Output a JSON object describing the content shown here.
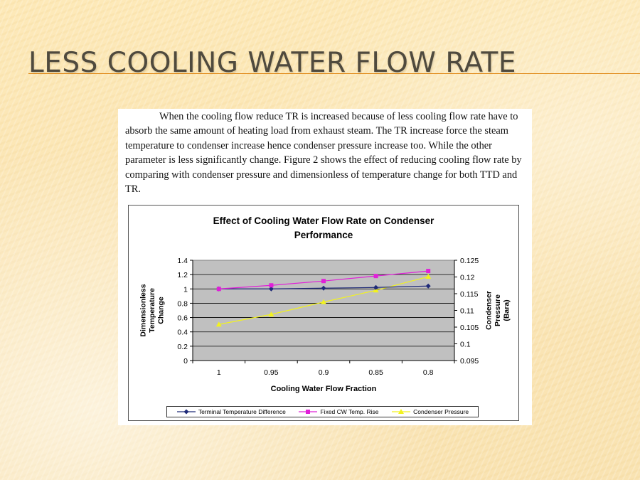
{
  "slide": {
    "title": "LESS COOLING WATER FLOW RATE",
    "accent_color": "#e08a1a"
  },
  "figure": {
    "paragraph": "When the cooling flow reduce TR is increased because of less cooling flow rate have to absorb the same amount of heating load from exhaust steam. The TR increase force the steam temperature to condenser increase hence condenser pressure increase too. While the other parameter is less significantly change. Figure 2 shows the effect of reducing cooling flow rate by comparing with condenser pressure and dimensionless of temperature change for both TTD and TR."
  },
  "chart_data": {
    "type": "line",
    "title": "Effect of Cooling Water Flow Rate on Condenser Performance",
    "xlabel": "Cooling Water Flow Fraction",
    "ylabel_left": "Dimensionless Temperature Change",
    "ylabel_right": "Condenser Pressure (Bara)",
    "categories": [
      "1",
      "0.95",
      "0.9",
      "0.85",
      "0.8"
    ],
    "y_left": {
      "min": 0,
      "max": 1.4,
      "ticks": [
        "0",
        "0.2",
        "0.4",
        "0.6",
        "0.8",
        "1",
        "1.2",
        "1.4"
      ]
    },
    "y_right": {
      "min": 0.095,
      "max": 0.125,
      "ticks": [
        "0.095",
        "0.1",
        "0.105",
        "0.11",
        "0.115",
        "0.12",
        "0.125"
      ]
    },
    "grid": true,
    "plot_background": "#c0c0c0",
    "legend_position": "bottom",
    "series": [
      {
        "name": "Terminal Temperature Difference",
        "axis": "left",
        "color": "#1f2a78",
        "marker": "diamond",
        "values": [
          1.0,
          1.0,
          1.01,
          1.02,
          1.04
        ]
      },
      {
        "name": "Fixed CW Temp. Rise",
        "axis": "left",
        "color": "#e020d8",
        "marker": "square",
        "values": [
          1.0,
          1.05,
          1.11,
          1.18,
          1.25
        ]
      },
      {
        "name": "Condenser Pressure",
        "axis": "right",
        "color": "#f2f21e",
        "marker": "triangle",
        "values": [
          0.1058,
          0.1088,
          0.1125,
          0.116,
          0.1201
        ]
      }
    ]
  }
}
